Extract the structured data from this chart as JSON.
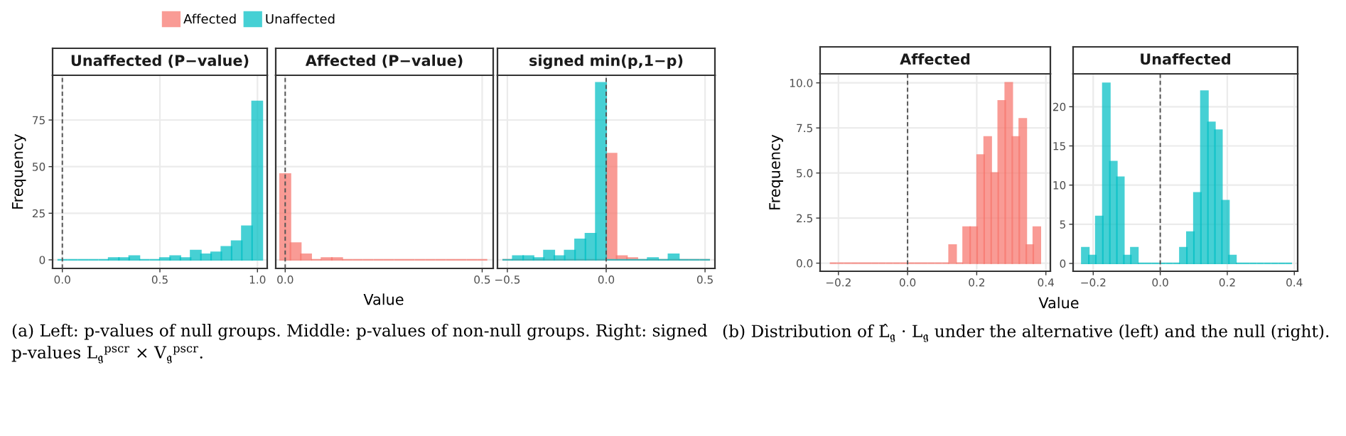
{
  "chart_data": [
    {
      "type": "histogram",
      "title": "Unaffected (P−value)",
      "ylabel": "Frequency",
      "bins": [
        -0.025,
        0.0275,
        0.08,
        0.1325,
        0.185,
        0.2375,
        0.29,
        0.3425,
        0.395,
        0.4475,
        0.5,
        0.5525,
        0.605,
        0.6575,
        0.71,
        0.7625,
        0.815,
        0.8675,
        0.92,
        0.9725,
        1.025
      ],
      "series": [
        {
          "color": "#00bfc4",
          "values": [
            0,
            0,
            0,
            0,
            0,
            1,
            1,
            2,
            0,
            0,
            1,
            2,
            1,
            5,
            3,
            4,
            7,
            10,
            18,
            85
          ]
        }
      ],
      "xlim": [
        -0.05,
        1.05
      ],
      "xticks": [
        {
          "value": 0,
          "label": "0.0"
        },
        0.5,
        {
          "value": 1,
          "label": "1.0"
        }
      ],
      "ylim": [
        -4.6,
        99
      ],
      "yticks": [
        0,
        25,
        50,
        75
      ],
      "grid": true,
      "ref_lines": [
        {
          "axis": "x",
          "value": 0,
          "color": "#555555",
          "line_style": "dashed"
        }
      ]
    },
    {
      "type": "histogram",
      "title": "Affected (P−value)",
      "xlabel": "Value",
      "bins": [
        -0.013,
        0.0133,
        0.0396,
        0.0659,
        0.0922,
        0.1185,
        0.1448,
        0.1711,
        0.1974,
        0.2237,
        0.25,
        0.2763,
        0.3026,
        0.3289,
        0.3552,
        0.3815,
        0.4078,
        0.4341,
        0.4604,
        0.4867,
        0.513
      ],
      "series": [
        {
          "color": "#f8766d",
          "values": [
            46,
            9,
            3,
            0,
            1,
            1,
            0,
            0,
            0,
            0,
            0,
            0,
            0,
            0,
            0,
            0,
            0,
            0,
            0,
            0
          ]
        }
      ],
      "xlim": [
        -0.024,
        0.528
      ],
      "xticks": [
        {
          "value": 0,
          "label": "0.0"
        },
        0.5
      ],
      "ylim": [
        -4.6,
        99
      ],
      "yticks": [
        0,
        25,
        50,
        75
      ],
      "grid": true,
      "tick_labels": "x",
      "ref_lines": [
        {
          "axis": "x",
          "value": 0,
          "color": "#555555",
          "line_style": "dashed"
        }
      ],
      "annotations": [
        "(a) Left: p-values of null groups. Middle: p-values of non-null groups. Right: signed p-values L$_{𝔤}$$^{pscr}$ × V$_{𝔤}$$^{pscr}$."
      ]
    },
    {
      "type": "histogram",
      "title": "signed min(p,1−p)",
      "bins": [
        -0.525,
        -0.4725,
        -0.42,
        -0.3675,
        -0.315,
        -0.2625,
        -0.21,
        -0.1575,
        -0.105,
        -0.0525,
        0,
        0.0525,
        0.105,
        0.1575,
        0.21,
        0.2625,
        0.315,
        0.3675,
        0.42,
        0.4725,
        0.525
      ],
      "series": [
        {
          "name": "Affected",
          "color": "#f8766d",
          "values": [
            0,
            0,
            0,
            0,
            0,
            0,
            0,
            0,
            0,
            0,
            57,
            2,
            1,
            0,
            0,
            0,
            0,
            0,
            0,
            0
          ]
        },
        {
          "name": "Unaffected",
          "color": "#00bfc4",
          "values": [
            0,
            2,
            2,
            1,
            5,
            2,
            5,
            11,
            14,
            95,
            0,
            0,
            0,
            0,
            1,
            0,
            3,
            0,
            0,
            0
          ]
        }
      ],
      "xlim": [
        -0.55,
        0.55
      ],
      "xticks": [
        {
          "value": -0.5,
          "label": "−0.5"
        },
        {
          "value": 0,
          "label": "0.0"
        },
        0.5
      ],
      "ylim": [
        -4.6,
        99
      ],
      "yticks": [
        0,
        25,
        50,
        75
      ],
      "grid": true,
      "tick_labels": "x",
      "legend": "top",
      "ref_lines": [
        {
          "axis": "x",
          "value": 0,
          "color": "#555555",
          "line_style": "dashed"
        }
      ]
    },
    {
      "type": "histogram",
      "title": "Affected",
      "ylabel": "Frequency",
      "xlabel": "Value",
      "bins": [
        -0.225,
        -0.2047,
        -0.1844,
        -0.1641,
        -0.1438,
        -0.1235,
        -0.1032,
        -0.0829,
        -0.0626,
        -0.0423,
        -0.022,
        -0.0017,
        0.0186,
        0.0389,
        0.0592,
        0.0795,
        0.0998,
        0.1201,
        0.1404,
        0.1607,
        0.181,
        0.2013,
        0.2216,
        0.2419,
        0.2622,
        0.2825,
        0.3028,
        0.3231,
        0.3434,
        0.3637,
        0.384
      ],
      "series": [
        {
          "color": "#f8766d",
          "values": [
            0,
            0,
            0,
            0,
            0,
            0,
            0,
            0,
            0,
            0,
            0,
            0,
            0,
            0,
            0,
            0,
            0,
            1,
            0,
            2,
            2,
            6,
            7,
            5,
            9,
            10,
            7,
            8,
            1,
            2
          ]
        }
      ],
      "xlim": [
        -0.253,
        0.413
      ],
      "xticks": [
        {
          "value": -0.2,
          "label": "−0.2"
        },
        {
          "value": 0,
          "label": "0.0"
        },
        0.2,
        0.4
      ],
      "ylim": [
        -0.45,
        10.5
      ],
      "yticks": [
        {
          "value": 0,
          "label": "0.0"
        },
        2.5,
        {
          "value": 5,
          "label": "5.0"
        },
        7.5,
        {
          "value": 10,
          "label": "10.0"
        }
      ],
      "grid": true,
      "ref_lines": [
        {
          "axis": "x",
          "value": 0,
          "color": "#555555",
          "line_style": "dashed"
        }
      ],
      "annotations": [
        "(b) Distribution of L̂$_{𝔤}$ · L$_{𝔤}$ under the alternative (left) and the null (right)."
      ]
    },
    {
      "type": "histogram",
      "title": "Unaffected",
      "bins": [
        -0.234,
        -0.2131,
        -0.1922,
        -0.1713,
        -0.1504,
        -0.1295,
        -0.1086,
        -0.0877,
        -0.0668,
        -0.0459,
        -0.025,
        -0.0041,
        0.0168,
        0.0377,
        0.0586,
        0.0795,
        0.1004,
        0.1213,
        0.1422,
        0.1631,
        0.184,
        0.2049,
        0.2258,
        0.2467,
        0.2676,
        0.2885,
        0.3094,
        0.3303,
        0.3512,
        0.3721,
        0.393
      ],
      "series": [
        {
          "color": "#00bfc4",
          "values": [
            2,
            1,
            6,
            23,
            13,
            11,
            1,
            2,
            0,
            0,
            0,
            0,
            0,
            0,
            2,
            4,
            9,
            22,
            18,
            17,
            8,
            1,
            0,
            0,
            0,
            0,
            0,
            0,
            0,
            0
          ]
        }
      ],
      "xlim": [
        -0.26,
        0.41
      ],
      "xticks": [
        {
          "value": -0.2,
          "label": "−0.2"
        },
        {
          "value": 0,
          "label": "0.0"
        },
        0.2,
        0.4
      ],
      "ylim": [
        -1.0,
        24.2
      ],
      "yticks": [
        0,
        5,
        10,
        15,
        20
      ],
      "grid": true,
      "ref_lines": [
        {
          "axis": "x",
          "value": 0,
          "color": "#555555",
          "line_style": "dashed"
        }
      ]
    }
  ]
}
